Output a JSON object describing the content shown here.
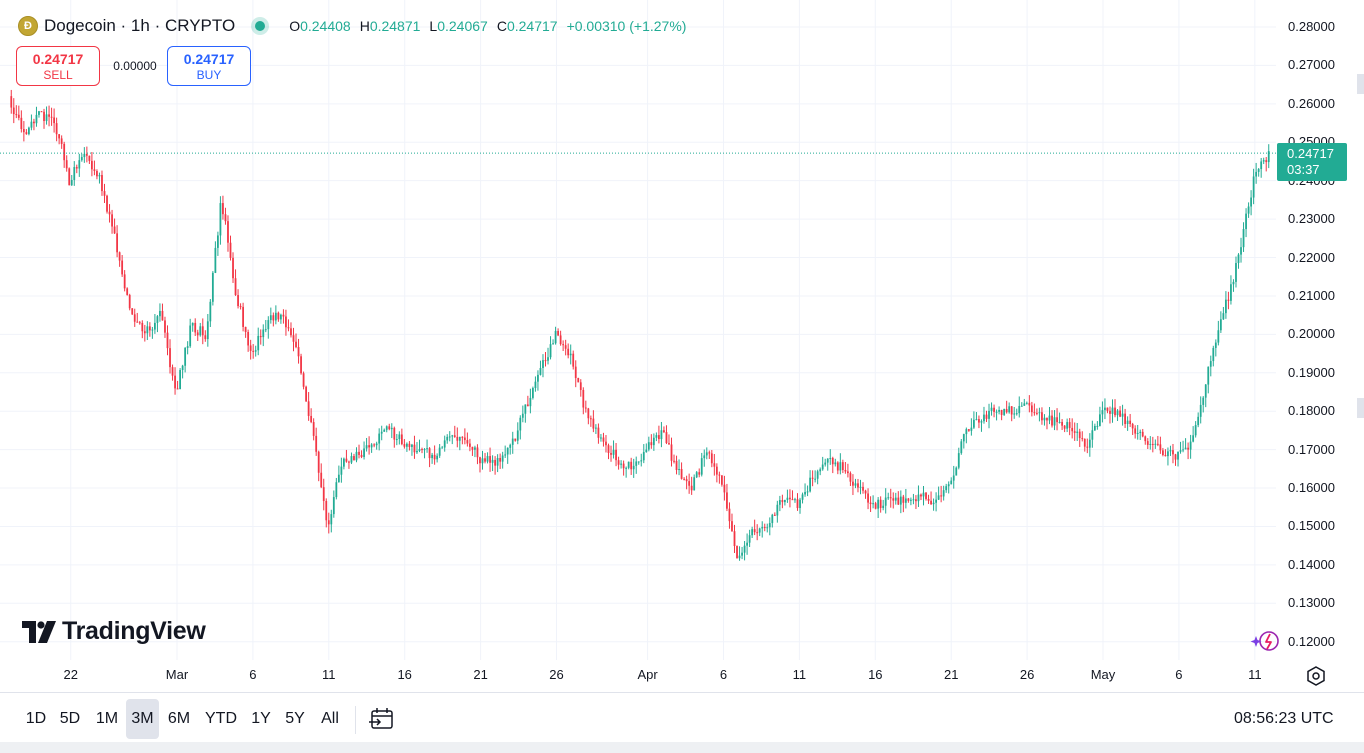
{
  "header": {
    "logo_glyph": "Ð",
    "symbol_title": "Dogecoin · 1h · CRYPTO",
    "market_status": "open",
    "ohlc": {
      "o_label": "O",
      "o_value": "0.24408",
      "h_label": "H",
      "h_value": "0.24871",
      "l_label": "L",
      "l_value": "0.24067",
      "c_label": "C",
      "c_value": "0.24717",
      "change": "+0.00310 (+1.27%)"
    }
  },
  "trade": {
    "sell_price": "0.24717",
    "sell_label": "SELL",
    "spread": "0.00000",
    "buy_price": "0.24717",
    "buy_label": "BUY"
  },
  "branding": {
    "wordmark": "TradingView"
  },
  "price_axis": {
    "ticks": [
      "0.28000",
      "0.27000",
      "0.26000",
      "0.25000",
      "0.24000",
      "0.23000",
      "0.22000",
      "0.21000",
      "0.20000",
      "0.19000",
      "0.18000",
      "0.17000",
      "0.16000",
      "0.15000",
      "0.14000",
      "0.13000",
      "0.12000"
    ],
    "last_price": "0.24717",
    "countdown": "03:37"
  },
  "time_axis": {
    "ticks": [
      "22",
      "Mar",
      "6",
      "11",
      "16",
      "21",
      "26",
      "Apr",
      "6",
      "11",
      "16",
      "21",
      "26",
      "May",
      "6",
      "11"
    ]
  },
  "range_buttons": [
    "1D",
    "5D",
    "1M",
    "3M",
    "6M",
    "YTD",
    "1Y",
    "5Y",
    "All"
  ],
  "active_range": "3M",
  "clock": "08:56:23 UTC",
  "colors": {
    "up": "#22ab94",
    "down": "#f23645",
    "grid": "#f0f3fa",
    "accent": "#2962ff"
  },
  "chart_data": {
    "type": "candlestick",
    "title": "Dogecoin · 1h · CRYPTO",
    "interval": "1h",
    "ylim": [
      0.115,
      0.2825
    ],
    "x_range": [
      "2025-02-18",
      "2025-05-12"
    ],
    "grid": true,
    "last_price": 0.24717,
    "anchor_points": [
      {
        "x": "2025-02-18",
        "y": 0.262
      },
      {
        "x": "2025-02-19",
        "y": 0.252
      },
      {
        "x": "2025-02-20",
        "y": 0.257
      },
      {
        "x": "2025-02-21",
        "y": 0.256
      },
      {
        "x": "2025-02-22",
        "y": 0.24
      },
      {
        "x": "2025-02-23",
        "y": 0.247
      },
      {
        "x": "2025-02-24",
        "y": 0.24
      },
      {
        "x": "2025-02-25",
        "y": 0.225
      },
      {
        "x": "2025-02-26",
        "y": 0.205
      },
      {
        "x": "2025-02-27",
        "y": 0.2
      },
      {
        "x": "2025-02-28",
        "y": 0.205
      },
      {
        "x": "2025-03-01",
        "y": 0.185
      },
      {
        "x": "2025-03-02",
        "y": 0.202
      },
      {
        "x": "2025-03-03",
        "y": 0.2
      },
      {
        "x": "2025-03-04",
        "y": 0.235
      },
      {
        "x": "2025-03-05",
        "y": 0.21
      },
      {
        "x": "2025-03-06",
        "y": 0.195
      },
      {
        "x": "2025-03-07",
        "y": 0.203
      },
      {
        "x": "2025-03-08",
        "y": 0.205
      },
      {
        "x": "2025-03-09",
        "y": 0.195
      },
      {
        "x": "2025-03-10",
        "y": 0.175
      },
      {
        "x": "2025-03-11",
        "y": 0.15
      },
      {
        "x": "2025-03-12",
        "y": 0.168
      },
      {
        "x": "2025-03-13",
        "y": 0.168
      },
      {
        "x": "2025-03-14",
        "y": 0.172
      },
      {
        "x": "2025-03-15",
        "y": 0.175
      },
      {
        "x": "2025-03-16",
        "y": 0.172
      },
      {
        "x": "2025-03-17",
        "y": 0.17
      },
      {
        "x": "2025-03-18",
        "y": 0.168
      },
      {
        "x": "2025-03-19",
        "y": 0.175
      },
      {
        "x": "2025-03-20",
        "y": 0.172
      },
      {
        "x": "2025-03-21",
        "y": 0.168
      },
      {
        "x": "2025-03-22",
        "y": 0.167
      },
      {
        "x": "2025-03-23",
        "y": 0.17
      },
      {
        "x": "2025-03-24",
        "y": 0.18
      },
      {
        "x": "2025-03-25",
        "y": 0.19
      },
      {
        "x": "2025-03-26",
        "y": 0.2
      },
      {
        "x": "2025-03-27",
        "y": 0.195
      },
      {
        "x": "2025-03-28",
        "y": 0.18
      },
      {
        "x": "2025-03-29",
        "y": 0.172
      },
      {
        "x": "2025-03-30",
        "y": 0.168
      },
      {
        "x": "2025-03-31",
        "y": 0.165
      },
      {
        "x": "2025-04-01",
        "y": 0.17
      },
      {
        "x": "2025-04-02",
        "y": 0.175
      },
      {
        "x": "2025-04-03",
        "y": 0.165
      },
      {
        "x": "2025-04-04",
        "y": 0.16
      },
      {
        "x": "2025-04-05",
        "y": 0.17
      },
      {
        "x": "2025-04-06",
        "y": 0.162
      },
      {
        "x": "2025-04-07",
        "y": 0.142
      },
      {
        "x": "2025-04-08",
        "y": 0.148
      },
      {
        "x": "2025-04-09",
        "y": 0.15
      },
      {
        "x": "2025-04-10",
        "y": 0.158
      },
      {
        "x": "2025-04-11",
        "y": 0.155
      },
      {
        "x": "2025-04-12",
        "y": 0.163
      },
      {
        "x": "2025-04-13",
        "y": 0.167
      },
      {
        "x": "2025-04-14",
        "y": 0.165
      },
      {
        "x": "2025-04-15",
        "y": 0.16
      },
      {
        "x": "2025-04-16",
        "y": 0.155
      },
      {
        "x": "2025-04-17",
        "y": 0.157
      },
      {
        "x": "2025-04-18",
        "y": 0.157
      },
      {
        "x": "2025-04-19",
        "y": 0.158
      },
      {
        "x": "2025-04-20",
        "y": 0.156
      },
      {
        "x": "2025-04-21",
        "y": 0.16
      },
      {
        "x": "2025-04-22",
        "y": 0.175
      },
      {
        "x": "2025-04-23",
        "y": 0.178
      },
      {
        "x": "2025-04-24",
        "y": 0.18
      },
      {
        "x": "2025-04-25",
        "y": 0.18
      },
      {
        "x": "2025-04-26",
        "y": 0.182
      },
      {
        "x": "2025-04-27",
        "y": 0.178
      },
      {
        "x": "2025-04-28",
        "y": 0.177
      },
      {
        "x": "2025-04-29",
        "y": 0.176
      },
      {
        "x": "2025-04-30",
        "y": 0.17
      },
      {
        "x": "2025-05-01",
        "y": 0.18
      },
      {
        "x": "2025-05-02",
        "y": 0.18
      },
      {
        "x": "2025-05-03",
        "y": 0.175
      },
      {
        "x": "2025-05-04",
        "y": 0.172
      },
      {
        "x": "2025-05-05",
        "y": 0.17
      },
      {
        "x": "2025-05-06",
        "y": 0.168
      },
      {
        "x": "2025-05-07",
        "y": 0.172
      },
      {
        "x": "2025-05-08",
        "y": 0.19
      },
      {
        "x": "2025-05-09",
        "y": 0.205
      },
      {
        "x": "2025-05-10",
        "y": 0.22
      },
      {
        "x": "2025-05-11",
        "y": 0.24
      },
      {
        "x": "2025-05-12",
        "y": 0.247
      }
    ]
  }
}
